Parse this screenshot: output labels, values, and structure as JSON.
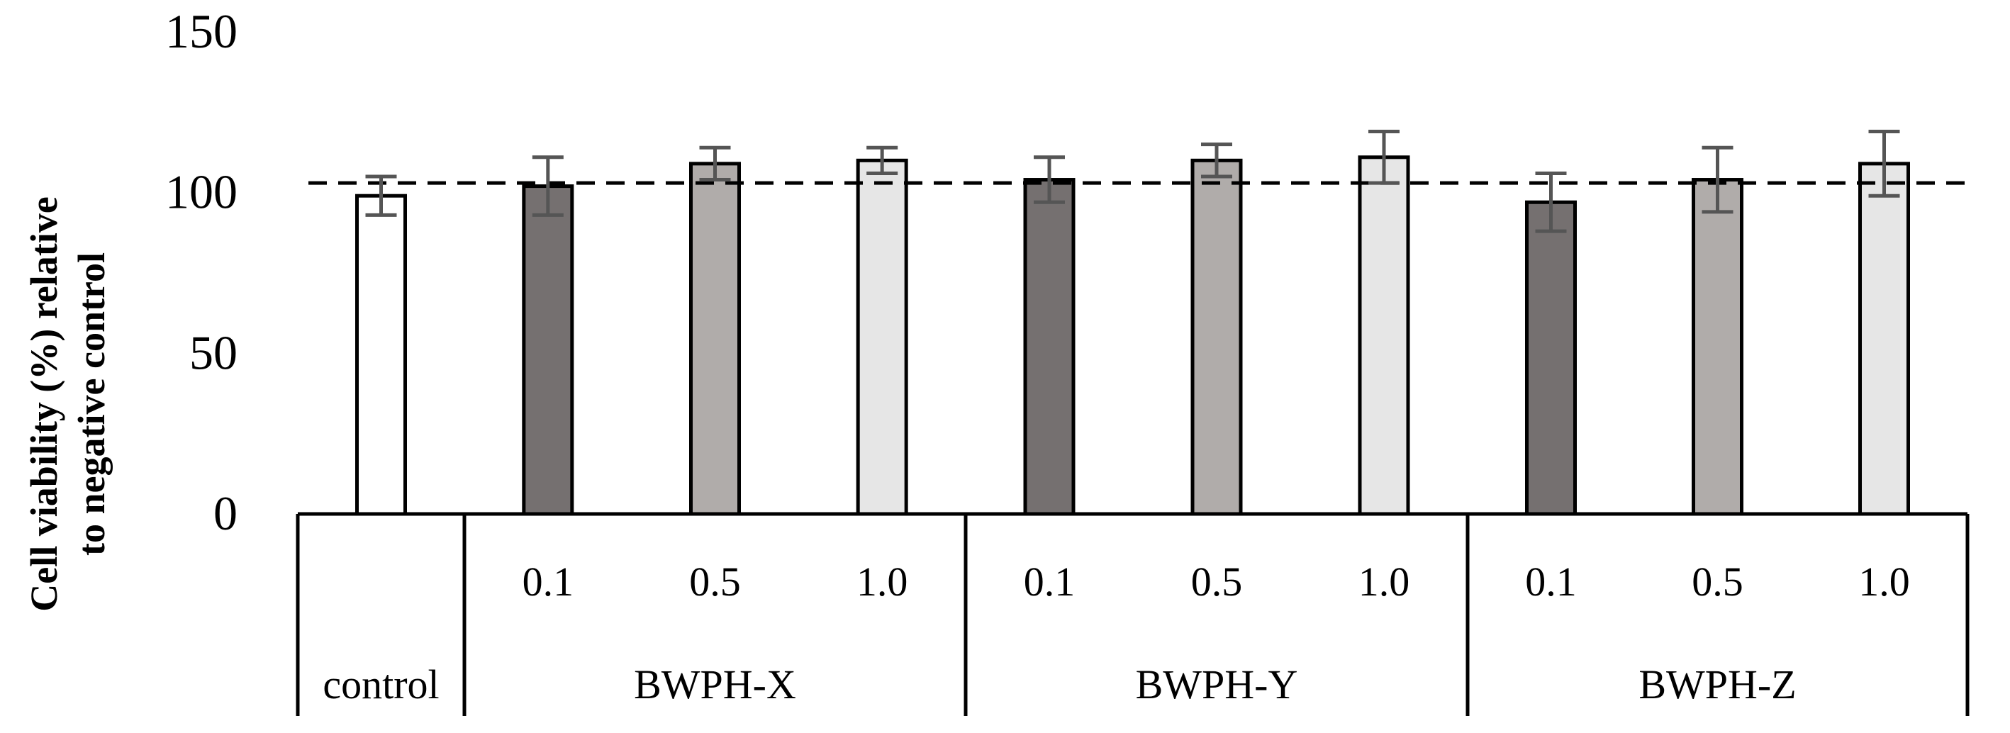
{
  "chart_data": {
    "type": "bar",
    "title": "",
    "ylabel_lines": [
      "Cell viability (%) relative",
      "to negative control"
    ],
    "xlabel": "",
    "ylim": [
      0,
      150
    ],
    "yticks": [
      "0",
      "50",
      "100",
      "150"
    ],
    "reference_line": 103,
    "groups": [
      {
        "label": "control",
        "bars": [
          {
            "sublabel": "",
            "value": 99,
            "error": 6,
            "color": "#ffffff"
          }
        ]
      },
      {
        "label": "BWPH-X",
        "bars": [
          {
            "sublabel": "0.1",
            "value": 102,
            "error": 9,
            "color": "#757070"
          },
          {
            "sublabel": "0.5",
            "value": 109,
            "error": 5,
            "color": "#b0acaa"
          },
          {
            "sublabel": "1.0",
            "value": 110,
            "error": 4,
            "color": "#e6e6e6"
          }
        ]
      },
      {
        "label": "BWPH-Y",
        "bars": [
          {
            "sublabel": "0.1",
            "value": 104,
            "error": 7,
            "color": "#757070"
          },
          {
            "sublabel": "0.5",
            "value": 110,
            "error": 5,
            "color": "#b0acaa"
          },
          {
            "sublabel": "1.0",
            "value": 111,
            "error": 8,
            "color": "#e6e6e6"
          }
        ]
      },
      {
        "label": "BWPH-Z",
        "bars": [
          {
            "sublabel": "0.1",
            "value": 97,
            "error": 9,
            "color": "#757070"
          },
          {
            "sublabel": "0.5",
            "value": 104,
            "error": 10,
            "color": "#b0acaa"
          },
          {
            "sublabel": "1.0",
            "value": 109,
            "error": 10,
            "color": "#e6e6e6"
          }
        ]
      }
    ]
  }
}
